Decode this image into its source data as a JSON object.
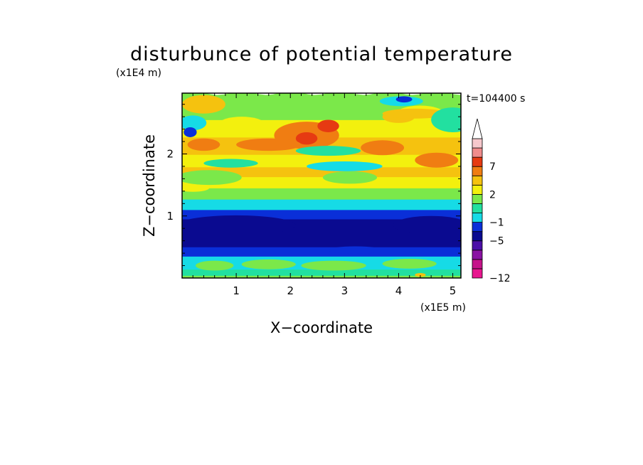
{
  "chart_data": {
    "type": "heatmap",
    "title": "disturbunce of potential temperature",
    "xlabel": "X−coordinate",
    "ylabel": "Z−coordinate",
    "x_unit": "(x1E5 m)",
    "y_unit": "(x1E4 m)",
    "time_label": "t=104400 s",
    "xlim": [
      0,
      5.15
    ],
    "ylim": [
      0,
      2.98
    ],
    "x_ticks": [
      {
        "value": 1,
        "label": "1"
      },
      {
        "value": 2,
        "label": "2"
      },
      {
        "value": 3,
        "label": "3"
      },
      {
        "value": 4,
        "label": "4"
      },
      {
        "value": 5,
        "label": "5"
      }
    ],
    "y_ticks": [
      {
        "value": 1,
        "label": "1"
      },
      {
        "value": 2,
        "label": "2"
      }
    ],
    "colorbar": {
      "levels": [
        -12,
        -11,
        -9,
        -7,
        -5,
        -3,
        -1,
        0,
        1,
        2,
        3,
        5,
        7,
        9,
        11
      ],
      "colors": [
        "#e8168f",
        "#c6138a",
        "#8a12a3",
        "#4b0fa8",
        "#0a0a90",
        "#0a2fd8",
        "#16dbe6",
        "#22e0a0",
        "#7be84a",
        "#f3f00e",
        "#f5c20f",
        "#f07d12",
        "#e63a12",
        "#f08c8c",
        "#f6c8cc"
      ],
      "tick_labels": [
        {
          "value": -12,
          "label": "−12"
        },
        {
          "value": -5,
          "label": "−5"
        },
        {
          "value": -1,
          "label": "−1"
        },
        {
          "value": 2,
          "label": "2"
        },
        {
          "value": 7,
          "label": "7"
        }
      ],
      "extend": "max"
    },
    "bands": [
      {
        "z": [
          0.0,
          0.07
        ],
        "color": "#7be84a"
      },
      {
        "z": [
          0.07,
          0.17
        ],
        "color": "#22e0a0"
      },
      {
        "z": [
          0.17,
          0.38
        ],
        "color": "#16dbe6"
      },
      {
        "z": [
          0.38,
          0.53
        ],
        "color": "#0a2fd8"
      },
      {
        "z": [
          0.53,
          0.98
        ],
        "color": "#0a0a90"
      },
      {
        "z": [
          0.98,
          1.13
        ],
        "color": "#0a2fd8"
      },
      {
        "z": [
          1.13,
          1.3
        ],
        "color": "#16dbe6"
      },
      {
        "z": [
          1.3,
          1.48
        ],
        "color": "#7be84a"
      },
      {
        "z": [
          1.48,
          1.66
        ],
        "color": "#f3f00e"
      },
      {
        "z": [
          1.66,
          1.82
        ],
        "color": "#f5c20f"
      },
      {
        "z": [
          1.82,
          2.02
        ],
        "color": "#f3f00e"
      },
      {
        "z": [
          2.02,
          2.3
        ],
        "color": "#f5c20f"
      },
      {
        "z": [
          2.3,
          2.58
        ],
        "color": "#f3f00e"
      },
      {
        "z": [
          2.58,
          2.98
        ],
        "color": "#7be84a"
      }
    ],
    "features": [
      {
        "x": 1.0,
        "z": 0.85,
        "rx": 1.1,
        "rz": 0.16,
        "color": "#0a0a90"
      },
      {
        "x": 4.6,
        "z": 0.85,
        "rx": 0.7,
        "rz": 0.15,
        "color": "#0a0a90"
      },
      {
        "x": 0.6,
        "z": 0.2,
        "rx": 0.35,
        "rz": 0.08,
        "color": "#7be84a"
      },
      {
        "x": 1.6,
        "z": 0.22,
        "rx": 0.5,
        "rz": 0.08,
        "color": "#7be84a"
      },
      {
        "x": 2.8,
        "z": 0.2,
        "rx": 0.6,
        "rz": 0.08,
        "color": "#7be84a"
      },
      {
        "x": 4.2,
        "z": 0.23,
        "rx": 0.5,
        "rz": 0.08,
        "color": "#7be84a"
      },
      {
        "x": 3.2,
        "z": 0.45,
        "rx": 0.5,
        "rz": 0.06,
        "color": "#0a2fd8"
      },
      {
        "x": 0.5,
        "z": 1.62,
        "rx": 0.6,
        "rz": 0.12,
        "color": "#7be84a"
      },
      {
        "x": 3.1,
        "z": 1.62,
        "rx": 0.5,
        "rz": 0.1,
        "color": "#7be84a"
      },
      {
        "x": 3.0,
        "z": 1.8,
        "rx": 0.7,
        "rz": 0.08,
        "color": "#16dbe6"
      },
      {
        "x": 0.9,
        "z": 1.85,
        "rx": 0.5,
        "rz": 0.07,
        "color": "#22e0a0"
      },
      {
        "x": 4.7,
        "z": 1.9,
        "rx": 0.4,
        "rz": 0.12,
        "color": "#f07d12"
      },
      {
        "x": 2.3,
        "z": 2.3,
        "rx": 0.6,
        "rz": 0.22,
        "color": "#f07d12"
      },
      {
        "x": 2.3,
        "z": 2.25,
        "rx": 0.2,
        "rz": 0.1,
        "color": "#e63a12"
      },
      {
        "x": 2.7,
        "z": 2.45,
        "rx": 0.2,
        "rz": 0.1,
        "color": "#e63a12"
      },
      {
        "x": 0.4,
        "z": 2.8,
        "rx": 0.4,
        "rz": 0.15,
        "color": "#f5c20f"
      },
      {
        "x": 0.2,
        "z": 2.5,
        "rx": 0.25,
        "rz": 0.12,
        "color": "#16dbe6"
      },
      {
        "x": 0.15,
        "z": 2.35,
        "rx": 0.12,
        "rz": 0.08,
        "color": "#0a2fd8"
      },
      {
        "x": 1.1,
        "z": 2.5,
        "rx": 0.4,
        "rz": 0.1,
        "color": "#f3f00e"
      },
      {
        "x": 2.7,
        "z": 2.05,
        "rx": 0.6,
        "rz": 0.08,
        "color": "#22e0a0"
      },
      {
        "x": 4.4,
        "z": 2.6,
        "rx": 0.5,
        "rz": 0.18,
        "color": "#f3f00e"
      },
      {
        "x": 4.0,
        "z": 2.6,
        "rx": 0.3,
        "rz": 0.1,
        "color": "#f5c20f"
      },
      {
        "x": 4.3,
        "z": 2.65,
        "rx": 0.6,
        "rz": 0.08,
        "color": "#f5c20f"
      },
      {
        "x": 5.0,
        "z": 2.55,
        "rx": 0.4,
        "rz": 0.2,
        "color": "#22e0a0"
      },
      {
        "x": 4.05,
        "z": 2.85,
        "rx": 0.4,
        "rz": 0.08,
        "color": "#16dbe6"
      },
      {
        "x": 4.1,
        "z": 2.88,
        "rx": 0.15,
        "rz": 0.05,
        "color": "#0a2fd8"
      },
      {
        "x": 0.4,
        "z": 2.15,
        "rx": 0.3,
        "rz": 0.1,
        "color": "#f07d12"
      },
      {
        "x": 1.6,
        "z": 2.15,
        "rx": 0.6,
        "rz": 0.1,
        "color": "#f07d12"
      },
      {
        "x": 3.7,
        "z": 2.1,
        "rx": 0.4,
        "rz": 0.12,
        "color": "#f07d12"
      },
      {
        "x": 0.2,
        "z": 1.45,
        "rx": 0.3,
        "rz": 0.06,
        "color": "#f3f00e"
      },
      {
        "x": 4.5,
        "z": 1.35,
        "rx": 0.2,
        "rz": 0.05,
        "color": "#7be84a"
      },
      {
        "x": 4.4,
        "z": 0.05,
        "rx": 0.1,
        "rz": 0.03,
        "color": "#f5c20f"
      }
    ]
  }
}
